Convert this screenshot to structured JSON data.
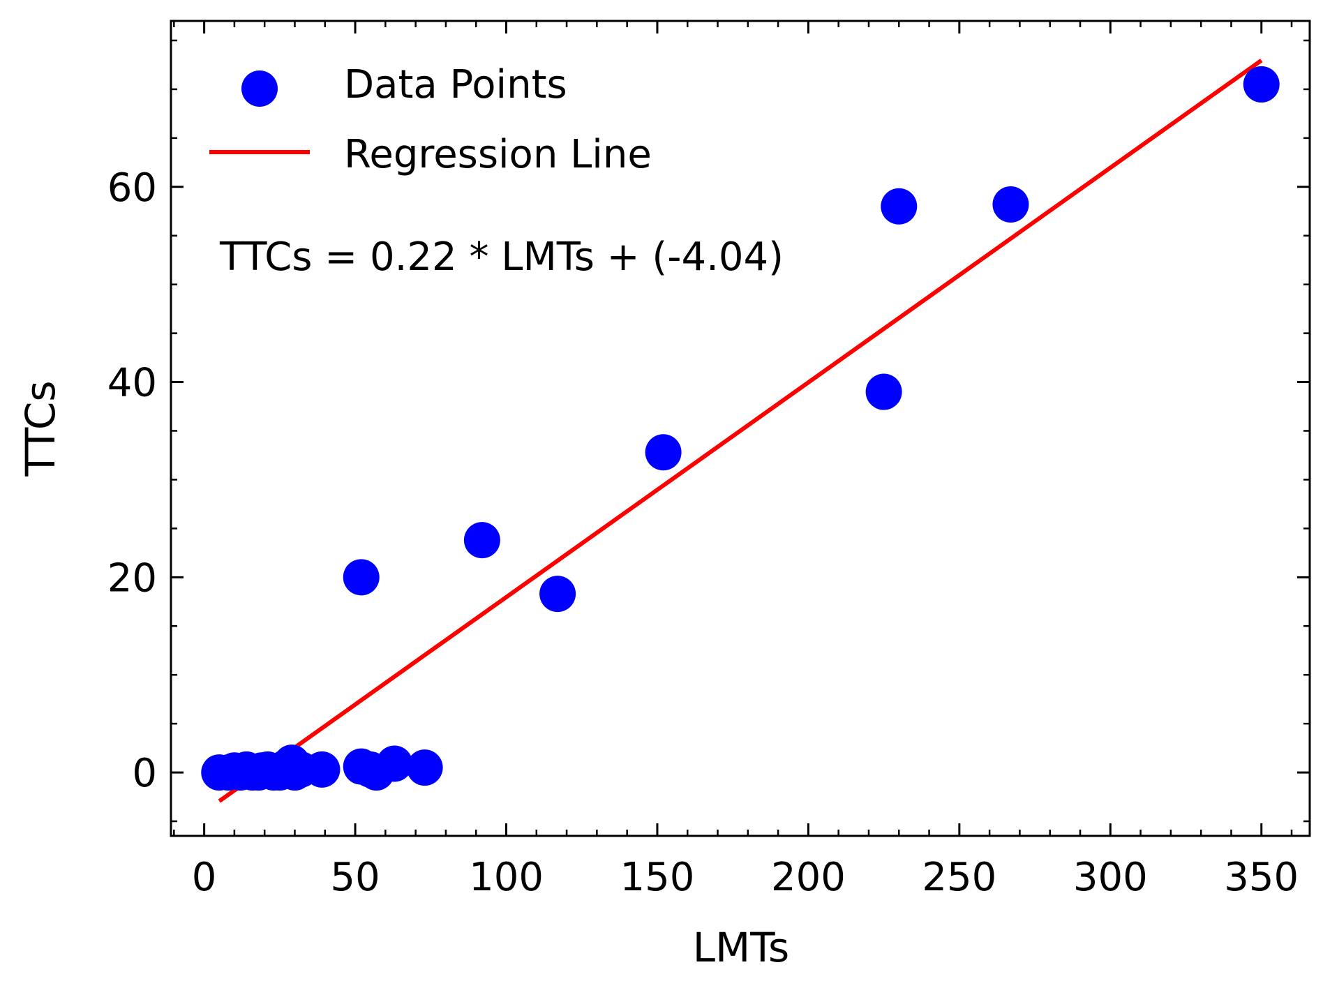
{
  "chart_data": {
    "type": "scatter",
    "xlabel": "LMTs",
    "ylabel": "TTCs",
    "xlim": [
      -11,
      366
    ],
    "ylim": [
      -6.5,
      77
    ],
    "x_ticks": [
      0,
      50,
      100,
      150,
      200,
      250,
      300,
      350
    ],
    "y_ticks": [
      0,
      20,
      40,
      60
    ],
    "x_minor_step": 10,
    "y_minor_step": 5,
    "tick_direction": "in",
    "grid": false,
    "legend": {
      "placement": "top-left",
      "entries": [
        {
          "label": "Data Points",
          "kind": "marker",
          "color": "#0000ff"
        },
        {
          "label": "Regression Line",
          "kind": "line",
          "color": "#ff0000"
        }
      ]
    },
    "annotation": "TTCs = 0.22 * LMTs + (-4.04)",
    "series": [
      {
        "name": "Data Points",
        "kind": "scatter",
        "color": "#0000ff",
        "points": [
          [
            5,
            0
          ],
          [
            8,
            0
          ],
          [
            10,
            0.2
          ],
          [
            12,
            0
          ],
          [
            14,
            0.3
          ],
          [
            16,
            0
          ],
          [
            18,
            0
          ],
          [
            19,
            0.2
          ],
          [
            21,
            0.3
          ],
          [
            23,
            0
          ],
          [
            25,
            0
          ],
          [
            27,
            0.5
          ],
          [
            29,
            1.0
          ],
          [
            30,
            0
          ],
          [
            32,
            0.3
          ],
          [
            39,
            0.3
          ],
          [
            52,
            20
          ],
          [
            52,
            0.6
          ],
          [
            55,
            0.3
          ],
          [
            57,
            0
          ],
          [
            63,
            0.9
          ],
          [
            73,
            0.5
          ],
          [
            92,
            23.8
          ],
          [
            117,
            18.3
          ],
          [
            152,
            32.8
          ],
          [
            225,
            39
          ],
          [
            230,
            58
          ],
          [
            267,
            58.2
          ],
          [
            350,
            70.5
          ]
        ]
      },
      {
        "name": "Regression Line",
        "kind": "line",
        "color": "#ff0000",
        "slope": 0.22,
        "intercept": -4.04,
        "x_range": [
          5,
          350
        ]
      }
    ]
  }
}
